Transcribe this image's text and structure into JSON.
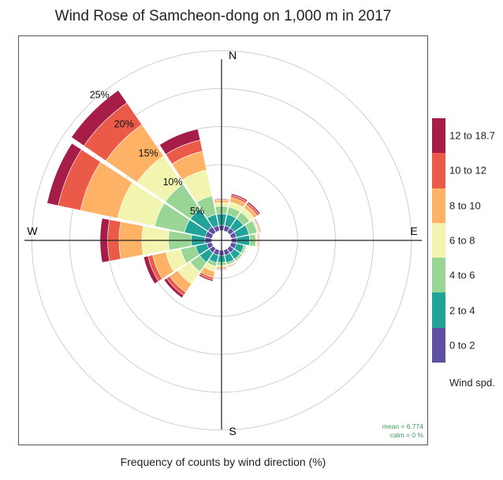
{
  "chart_data": {
    "type": "windrose",
    "title": "Wind Rose of Samcheon-dong on 1,000 m in 2017",
    "xlabel": "Frequency of counts by wind direction (%)",
    "directions_deg": [
      0,
      22.5,
      45,
      67.5,
      90,
      112.5,
      135,
      157.5,
      180,
      202.5,
      225,
      247.5,
      270,
      292.5,
      315,
      337.5
    ],
    "compass_labels": {
      "north": "N",
      "east": "E",
      "south": "S",
      "west": "W"
    },
    "radial_labels": [
      "5%",
      "10%",
      "15%",
      "20%",
      "25%"
    ],
    "radial_ticks": [
      5,
      10,
      15,
      20,
      25
    ],
    "rmax": 27,
    "legend_title": "Wind spd.",
    "bins": [
      {
        "label": "0 to 2",
        "color": "#5e4fa2"
      },
      {
        "label": "2 to 4",
        "color": "#21a39a"
      },
      {
        "label": "4 to 6",
        "color": "#99d594"
      },
      {
        "label": "6 to 8",
        "color": "#f2f5b0"
      },
      {
        "label": "8 to 10",
        "color": "#fdb265"
      },
      {
        "label": "10 to 12",
        "color": "#eb5a48"
      },
      {
        "label": "12 to 18.7",
        "color": "#a61d48"
      }
    ],
    "cumulative": [
      [
        2.0,
        3.5,
        4.5,
        5.0,
        5.3,
        5.4,
        5.5
      ],
      [
        2.0,
        3.5,
        4.5,
        5.2,
        5.8,
        6.1,
        6.3
      ],
      [
        2.0,
        3.5,
        4.5,
        5.2,
        5.7,
        6.0,
        6.2
      ],
      [
        2.0,
        3.7,
        4.8,
        5.0,
        5.1,
        5.2,
        5.3
      ],
      [
        2.0,
        3.7,
        4.5,
        4.7,
        4.8,
        4.9,
        4.9
      ],
      [
        2.0,
        3.0,
        3.3,
        3.4,
        3.5,
        3.5,
        3.5
      ],
      [
        2.0,
        3.0,
        3.3,
        3.4,
        3.5,
        3.5,
        3.5
      ],
      [
        2.0,
        3.0,
        3.3,
        3.4,
        3.5,
        3.6,
        3.6
      ],
      [
        2.0,
        2.9,
        3.3,
        3.5,
        3.7,
        3.8,
        3.9
      ],
      [
        2.0,
        3.0,
        3.5,
        4.2,
        5.0,
        5.3,
        5.5
      ],
      [
        2.0,
        3.5,
        5.0,
        7.0,
        8.3,
        8.8,
        9.2
      ],
      [
        2.0,
        3.5,
        5.5,
        7.5,
        9.3,
        9.9,
        10.5
      ],
      [
        2.2,
        4.0,
        7.0,
        10.5,
        13.5,
        15.0,
        16.0
      ],
      [
        2.2,
        5.0,
        9.0,
        14.0,
        19.0,
        22.0,
        23.5
      ],
      [
        2.2,
        5.0,
        9.0,
        13.5,
        18.5,
        22.0,
        24.0
      ],
      [
        2.0,
        3.5,
        6.0,
        9.5,
        12.0,
        13.5,
        15.0
      ]
    ]
  },
  "stats": {
    "mean": "mean = 6.774",
    "calm": "calm = 0 %"
  }
}
